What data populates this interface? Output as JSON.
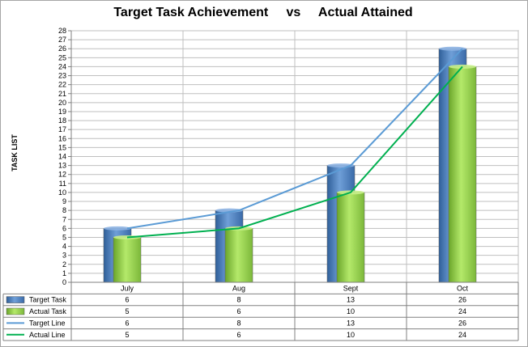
{
  "chart_data": {
    "type": "bar",
    "title": "Target Task Achievement     vs     Actual Attained",
    "ylabel": "TASK LIST",
    "xlabel": "",
    "categories": [
      "July",
      "Aug",
      "Sept",
      "Oct"
    ],
    "ylim": [
      0,
      28
    ],
    "ytick_step": 1,
    "grid": true,
    "legend_placement": "data-table",
    "series": [
      {
        "name": "Target Task",
        "kind": "bar",
        "values": [
          6,
          8,
          13,
          26
        ],
        "color": "#4f81bd"
      },
      {
        "name": "Actual Task",
        "kind": "bar",
        "values": [
          5,
          6,
          10,
          24
        ],
        "color": "#92d050"
      },
      {
        "name": "Target Line",
        "kind": "line",
        "values": [
          6,
          8,
          13,
          26
        ],
        "color": "#5b9bd5"
      },
      {
        "name": "Actual Line",
        "kind": "line",
        "values": [
          5,
          6,
          10,
          24
        ],
        "color": "#00b050"
      }
    ]
  }
}
